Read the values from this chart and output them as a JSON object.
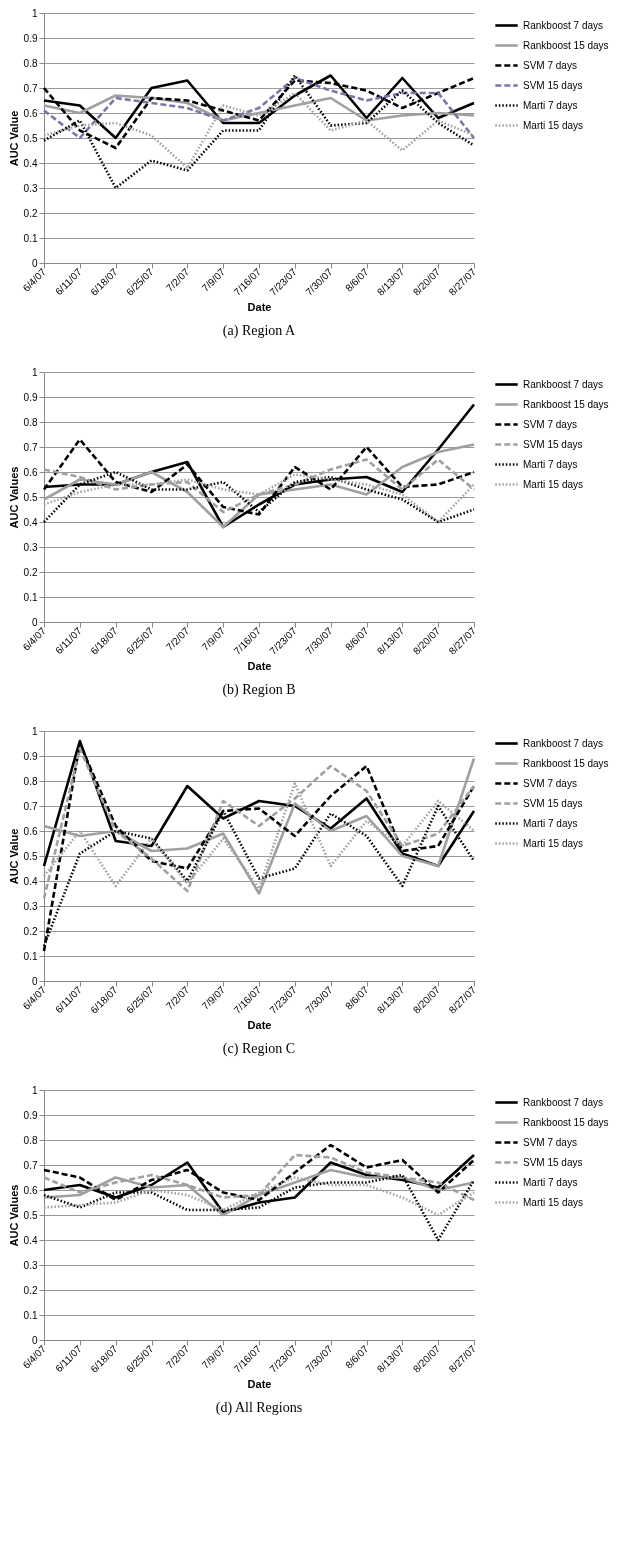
{
  "chart_data": [
    {
      "type": "line",
      "title": "(a)  Region A",
      "xlabel": "Date",
      "ylabel": "AUC Value",
      "categories": [
        "6/4/07",
        "6/11/07",
        "6/18/07",
        "6/25/07",
        "7/2/07",
        "7/9/07",
        "7/16/07",
        "7/23/07",
        "7/30/07",
        "8/6/07",
        "8/13/07",
        "8/20/07",
        "8/27/07"
      ],
      "ylim": [
        0,
        1
      ],
      "yticks": [
        0,
        0.1,
        0.2,
        0.3,
        0.4,
        0.5,
        0.6,
        0.7,
        0.8,
        0.9,
        1
      ],
      "grid": "y",
      "legend": "right",
      "series": [
        {
          "name": "Rankboost 7 days",
          "color": "#000000",
          "line_style": "solid",
          "values": [
            0.65,
            0.63,
            0.5,
            0.7,
            0.73,
            0.56,
            0.56,
            0.67,
            0.75,
            0.58,
            0.74,
            0.58,
            0.64
          ]
        },
        {
          "name": "Rankboost 15 days",
          "color": "#a0a0a0",
          "line_style": "solid",
          "values": [
            0.63,
            0.6,
            0.67,
            0.66,
            0.64,
            0.57,
            0.6,
            0.63,
            0.66,
            0.57,
            0.59,
            0.6,
            0.59
          ]
        },
        {
          "name": "SVM 7 days",
          "color": "#000000",
          "line_style": "dashed",
          "values": [
            0.7,
            0.53,
            0.46,
            0.66,
            0.65,
            0.61,
            0.57,
            0.73,
            0.72,
            0.69,
            0.62,
            0.68,
            0.74
          ]
        },
        {
          "name": "SVM 15 days",
          "color": "#7777aa",
          "line_style": "dashed",
          "values": [
            0.61,
            0.5,
            0.66,
            0.64,
            0.62,
            0.57,
            0.62,
            0.74,
            0.69,
            0.65,
            0.68,
            0.68,
            0.5
          ]
        },
        {
          "name": "Marti 7 days",
          "color": "#000000",
          "line_style": "dotted",
          "values": [
            0.49,
            0.57,
            0.3,
            0.41,
            0.37,
            0.53,
            0.53,
            0.75,
            0.55,
            0.56,
            0.69,
            0.56,
            0.47
          ]
        },
        {
          "name": "Marti 15 days",
          "color": "#a0a0a0",
          "line_style": "dotted",
          "values": [
            0.51,
            0.55,
            0.56,
            0.51,
            0.38,
            0.63,
            0.59,
            0.68,
            0.53,
            0.57,
            0.45,
            0.57,
            0.51
          ]
        }
      ]
    },
    {
      "type": "line",
      "title": "(b)  Region B",
      "xlabel": "Date",
      "ylabel": "AUC Values",
      "categories": [
        "6/4/07",
        "6/11/07",
        "6/18/07",
        "6/25/07",
        "7/2/07",
        "7/9/07",
        "7/16/07",
        "7/23/07",
        "7/30/07",
        "8/6/07",
        "8/13/07",
        "8/20/07",
        "8/27/07"
      ],
      "ylim": [
        0,
        1
      ],
      "yticks": [
        0,
        0.1,
        0.2,
        0.3,
        0.4,
        0.5,
        0.6,
        0.7,
        0.8,
        0.9,
        1
      ],
      "grid": "y",
      "legend": "right",
      "series": [
        {
          "name": "Rankboost 7 days",
          "color": "#000000",
          "line_style": "solid",
          "values": [
            0.54,
            0.55,
            0.55,
            0.6,
            0.64,
            0.38,
            0.47,
            0.55,
            0.57,
            0.58,
            0.52,
            0.69,
            0.87
          ]
        },
        {
          "name": "Rankboost 15 days",
          "color": "#a0a0a0",
          "line_style": "solid",
          "values": [
            0.49,
            0.57,
            0.55,
            0.6,
            0.52,
            0.38,
            0.51,
            0.53,
            0.55,
            0.51,
            0.62,
            0.68,
            0.71
          ]
        },
        {
          "name": "SVM 7 days",
          "color": "#000000",
          "line_style": "dashed",
          "values": [
            0.53,
            0.73,
            0.56,
            0.52,
            0.63,
            0.46,
            0.43,
            0.62,
            0.53,
            0.7,
            0.54,
            0.55,
            0.6
          ]
        },
        {
          "name": "SVM 15 days",
          "color": "#a0a0a0",
          "line_style": "dashed",
          "values": [
            0.61,
            0.58,
            0.53,
            0.55,
            0.56,
            0.44,
            0.51,
            0.55,
            0.61,
            0.65,
            0.53,
            0.65,
            0.53
          ]
        },
        {
          "name": "Marti 7 days",
          "color": "#000000",
          "line_style": "dotted",
          "values": [
            0.4,
            0.55,
            0.6,
            0.53,
            0.53,
            0.56,
            0.44,
            0.56,
            0.58,
            0.53,
            0.49,
            0.4,
            0.45
          ]
        },
        {
          "name": "Marti 15 days",
          "color": "#a0a0a0",
          "line_style": "dotted",
          "values": [
            0.47,
            0.52,
            0.55,
            0.55,
            0.57,
            0.53,
            0.51,
            0.59,
            0.57,
            0.55,
            0.51,
            0.4,
            0.55
          ]
        }
      ]
    },
    {
      "type": "line",
      "title": "(c)  Region C",
      "xlabel": "Date",
      "ylabel": "AUC Value",
      "categories": [
        "6/4/07",
        "6/11/07",
        "6/18/07",
        "6/25/07",
        "7/2/07",
        "7/9/07",
        "7/16/07",
        "7/23/07",
        "7/30/07",
        "8/6/07",
        "8/13/07",
        "8/20/07",
        "8/27/07"
      ],
      "ylim": [
        0,
        1
      ],
      "yticks": [
        0,
        0.1,
        0.2,
        0.3,
        0.4,
        0.5,
        0.6,
        0.7,
        0.8,
        0.9,
        1
      ],
      "grid": "y",
      "legend": "right",
      "series": [
        {
          "name": "Rankboost 7 days",
          "color": "#000000",
          "line_style": "solid",
          "values": [
            0.46,
            0.96,
            0.56,
            0.54,
            0.78,
            0.65,
            0.72,
            0.7,
            0.61,
            0.73,
            0.51,
            0.46,
            0.68
          ]
        },
        {
          "name": "Rankboost 15 days",
          "color": "#a0a0a0",
          "line_style": "solid",
          "values": [
            0.62,
            0.58,
            0.6,
            0.52,
            0.53,
            0.59,
            0.35,
            0.71,
            0.6,
            0.66,
            0.5,
            0.46,
            0.89
          ]
        },
        {
          "name": "SVM 7 days",
          "color": "#000000",
          "line_style": "dashed",
          "values": [
            0.12,
            0.95,
            0.62,
            0.48,
            0.45,
            0.68,
            0.69,
            0.58,
            0.74,
            0.86,
            0.52,
            0.54,
            0.78
          ]
        },
        {
          "name": "SVM 15 days",
          "color": "#a0a0a0",
          "line_style": "dashed",
          "values": [
            0.33,
            0.93,
            0.6,
            0.49,
            0.36,
            0.72,
            0.62,
            0.73,
            0.86,
            0.76,
            0.54,
            0.59,
            0.78
          ]
        },
        {
          "name": "Marti 7 days",
          "color": "#000000",
          "line_style": "dotted",
          "values": [
            0.14,
            0.51,
            0.6,
            0.57,
            0.4,
            0.68,
            0.41,
            0.45,
            0.67,
            0.58,
            0.38,
            0.7,
            0.48
          ]
        },
        {
          "name": "Marti 15 days",
          "color": "#a0a0a0",
          "line_style": "dotted",
          "values": [
            0.42,
            0.6,
            0.38,
            0.57,
            0.39,
            0.57,
            0.37,
            0.79,
            0.46,
            0.64,
            0.54,
            0.72,
            0.6
          ]
        }
      ]
    },
    {
      "type": "line",
      "title": "(d)  All Regions",
      "xlabel": "Date",
      "ylabel": "AUC Values",
      "categories": [
        "6/4/07",
        "6/11/07",
        "6/18/07",
        "6/25/07",
        "7/2/07",
        "7/9/07",
        "7/16/07",
        "7/23/07",
        "7/30/07",
        "8/6/07",
        "8/13/07",
        "8/20/07",
        "8/27/07"
      ],
      "ylim": [
        0,
        1
      ],
      "yticks": [
        0,
        0.1,
        0.2,
        0.3,
        0.4,
        0.5,
        0.6,
        0.7,
        0.8,
        0.9,
        1
      ],
      "grid": "y",
      "legend": "right",
      "series": [
        {
          "name": "Rankboost 7 days",
          "color": "#000000",
          "line_style": "solid",
          "values": [
            0.6,
            0.62,
            0.57,
            0.62,
            0.71,
            0.51,
            0.55,
            0.57,
            0.71,
            0.66,
            0.64,
            0.61,
            0.74
          ]
        },
        {
          "name": "Rankboost 15 days",
          "color": "#a0a0a0",
          "line_style": "solid",
          "values": [
            0.57,
            0.58,
            0.65,
            0.61,
            0.62,
            0.5,
            0.58,
            0.63,
            0.68,
            0.65,
            0.65,
            0.6,
            0.63
          ]
        },
        {
          "name": "SVM 7 days",
          "color": "#000000",
          "line_style": "dashed",
          "values": [
            0.68,
            0.65,
            0.56,
            0.64,
            0.68,
            0.59,
            0.56,
            0.67,
            0.78,
            0.69,
            0.72,
            0.59,
            0.72
          ]
        },
        {
          "name": "SVM 15 days",
          "color": "#a0a0a0",
          "line_style": "dashed",
          "values": [
            0.65,
            0.59,
            0.63,
            0.66,
            0.62,
            0.57,
            0.58,
            0.74,
            0.73,
            0.67,
            0.65,
            0.63,
            0.56
          ]
        },
        {
          "name": "Marti 7 days",
          "color": "#000000",
          "line_style": "dotted",
          "values": [
            0.58,
            0.53,
            0.59,
            0.59,
            0.52,
            0.52,
            0.53,
            0.61,
            0.63,
            0.63,
            0.66,
            0.4,
            0.64
          ]
        },
        {
          "name": "Marti 15 days",
          "color": "#a0a0a0",
          "line_style": "dotted",
          "values": [
            0.53,
            0.54,
            0.55,
            0.6,
            0.58,
            0.52,
            0.59,
            0.65,
            0.62,
            0.62,
            0.57,
            0.5,
            0.59
          ]
        }
      ]
    }
  ]
}
